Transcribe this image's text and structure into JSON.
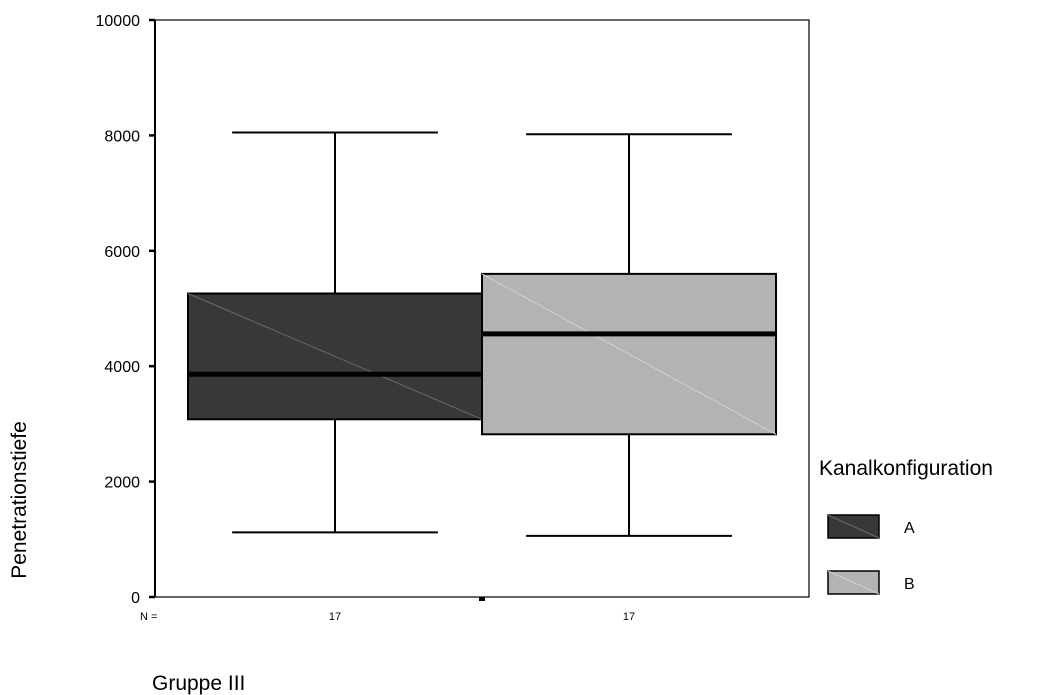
{
  "chart_data": {
    "type": "boxplot",
    "ylabel": "Penetrationstiefe",
    "xlabel": "Gruppe III",
    "ylim": [
      0,
      10000
    ],
    "yticks": [
      0,
      2000,
      4000,
      6000,
      8000,
      10000
    ],
    "n_prefix": "N =",
    "legend": {
      "title": "Kanalkonfiguration",
      "placement": "right"
    },
    "series": [
      {
        "name": "A",
        "color": "#383838",
        "n": "17",
        "min": 1120,
        "q1": 3080,
        "median": 3860,
        "q3": 5260,
        "max": 8050
      },
      {
        "name": "B",
        "color": "#b3b3b3",
        "n": "17",
        "min": 1060,
        "q1": 2820,
        "median": 4560,
        "q3": 5600,
        "max": 8020
      }
    ]
  }
}
